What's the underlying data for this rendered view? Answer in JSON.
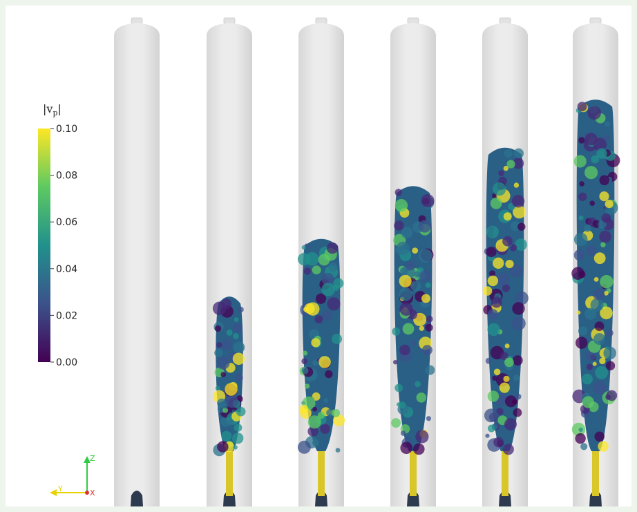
{
  "colorbar": {
    "title_base": "|v",
    "title_sub": "p",
    "title_end": "|",
    "ticks": [
      "0.10",
      "0.08",
      "0.06",
      "0.04",
      "0.02",
      "0.00"
    ],
    "colors": [
      "#fde725",
      "#5ec962",
      "#21918c",
      "#3b528b",
      "#440154"
    ]
  },
  "orientation_axes": {
    "z_label": "Z",
    "y_label": "Y",
    "x_label": "X",
    "z_color": "#2ecc40",
    "y_color": "#e8d200",
    "x_color": "#e03030"
  },
  "columns": {
    "count": 6,
    "fill_levels": [
      0.0,
      0.44,
      0.56,
      0.67,
      0.75,
      0.85
    ]
  }
}
